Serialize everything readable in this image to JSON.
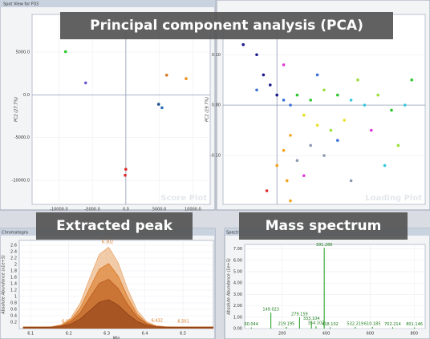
{
  "banners": [
    "Principal component analysis (PCA)",
    "Extracted peak",
    "Mass spectrum"
  ],
  "panel_titles": [
    "Spot View for F03",
    "Chromatogra",
    "Spectr"
  ],
  "chart_data": [
    {
      "type": "scatter",
      "watermark": "Score Plot",
      "ylabel": "PC2 (27.7%)",
      "x": [
        -9000,
        -6000,
        6100,
        9000,
        4900,
        5400,
        0,
        -100
      ],
      "y": [
        5050,
        1400,
        2300,
        1900,
        -1100,
        -1500,
        -8700,
        -9400
      ],
      "colors": [
        "#2ec82e",
        "#6a5acd",
        "#d9731a",
        "#f08c1e",
        "#1f4e8c",
        "#2a6fb0",
        "#e02a2a",
        "#e02a2a"
      ],
      "xlim": [
        -14000,
        12600
      ],
      "ylim": [
        -12800,
        9400
      ],
      "xticks": [
        {
          "value": -10000,
          "label": "-10000.0"
        },
        {
          "value": -5000,
          "label": "-5000.0"
        },
        {
          "value": 0,
          "label": "0.0"
        },
        {
          "value": 5000,
          "label": "5000.0"
        },
        {
          "value": 10000,
          "label": "10000.0"
        }
      ],
      "yticks": [
        {
          "value": 5000,
          "label": "5000.0"
        },
        {
          "value": 0,
          "label": "0.0"
        },
        {
          "value": -5000,
          "label": "-5000.0"
        },
        {
          "value": -10000,
          "label": "-10000.0"
        }
      ],
      "grid": true
    },
    {
      "type": "scatter",
      "watermark": "Loading Plot",
      "ylabel": "PC2 (19.7%)",
      "x": [
        -0.03,
        -0.02,
        -0.01,
        0.0,
        0.01,
        0.02,
        0.03,
        0.05,
        0.07,
        0.09,
        0.11,
        0.13,
        0.15,
        0.17,
        0.19,
        0.04,
        0.06,
        0.08,
        0.1,
        0.02,
        0.01,
        0.0,
        0.015,
        0.03,
        0.05,
        0.07,
        0.09,
        -0.015,
        0.02,
        0.04,
        -0.05,
        0.01,
        0.06,
        0.12,
        0.14,
        0.16,
        0.18,
        0.11,
        -0.03,
        0.2
      ],
      "y": [
        0.1,
        0.06,
        0.04,
        0.02,
        0.01,
        0.0,
        0.02,
        0.01,
        0.03,
        0.02,
        0.01,
        0.0,
        0.02,
        -0.01,
        0.0,
        -0.02,
        -0.04,
        -0.05,
        -0.03,
        -0.06,
        -0.09,
        -0.12,
        -0.15,
        -0.11,
        -0.08,
        -0.1,
        -0.07,
        -0.17,
        -0.19,
        -0.14,
        0.12,
        0.08,
        0.06,
        0.05,
        -0.05,
        -0.12,
        -0.08,
        -0.15,
        0.03,
        0.05
      ],
      "colors": [
        "#1a1a8c",
        "#1a1a8c",
        "#1a1a8c",
        "#1a1a8c",
        "#3b6fd9",
        "#3b6fd9",
        "#2ec82e",
        "#2ec82e",
        "#9be03a",
        "#2ec82e",
        "#35c8e0",
        "#35c8e0",
        "#9be03a",
        "#2ec82e",
        "#35c8e0",
        "#e8e02a",
        "#e8e02a",
        "#9be03a",
        "#e8e02a",
        "#f5a21b",
        "#f5a21b",
        "#f5a21b",
        "#f5a21b",
        "#8a9bb0",
        "#8a9bb0",
        "#8a9bb0",
        "#3b6fd9",
        "#e02a2a",
        "#f5a21b",
        "#e03ad6",
        "#1a1a8c",
        "#e03ad6",
        "#3b6fd9",
        "#9be03a",
        "#e03ad6",
        "#35c8e0",
        "#9be03a",
        "#8a9bb0",
        "#3b6fd9",
        "#2ec82e"
      ],
      "xlim": [
        -0.08,
        0.22
      ],
      "ylim": [
        -0.197,
        0.18
      ],
      "yticks": [
        {
          "value": 0.1,
          "label": "0.10"
        },
        {
          "value": 0,
          "label": "0.00"
        },
        {
          "value": -0.1,
          "label": "-0.10"
        }
      ],
      "grid": true
    },
    {
      "type": "line",
      "xlabel": "Min",
      "ylabel": "Absolute Abundance (x1e+5)",
      "x": [
        6.08,
        6.105,
        6.13,
        6.155,
        6.18,
        6.205,
        6.23,
        6.255,
        6.28,
        6.305,
        6.33,
        6.355,
        6.38,
        6.405,
        6.43,
        6.455,
        6.48,
        6.505,
        6.53,
        6.555,
        6.58
      ],
      "series": [
        {
          "color": "#e8a060",
          "values": [
            0.05,
            0.05,
            0.05,
            0.06,
            0.12,
            0.32,
            0.79,
            1.57,
            2.31,
            2.54,
            2.05,
            1.22,
            0.56,
            0.21,
            0.09,
            0.06,
            0.05,
            0.05,
            0.05,
            0.05,
            0.05
          ]
        },
        {
          "color": "#d9731a",
          "values": [
            0.05,
            0.05,
            0.05,
            0.05,
            0.1,
            0.26,
            0.64,
            1.26,
            1.85,
            2.03,
            1.64,
            0.98,
            0.45,
            0.17,
            0.07,
            0.05,
            0.05,
            0.05,
            0.05,
            0.05,
            0.05
          ]
        },
        {
          "color": "#b5561a",
          "values": [
            0.05,
            0.05,
            0.05,
            0.05,
            0.09,
            0.21,
            0.49,
            0.96,
            1.41,
            1.54,
            1.25,
            0.75,
            0.36,
            0.15,
            0.07,
            0.05,
            0.05,
            0.05,
            0.05,
            0.05,
            0.05
          ]
        },
        {
          "color": "#8a3c12",
          "values": [
            0.04,
            0.04,
            0.04,
            0.04,
            0.06,
            0.14,
            0.3,
            0.56,
            0.82,
            0.9,
            0.73,
            0.45,
            0.22,
            0.1,
            0.05,
            0.04,
            0.04,
            0.04,
            0.04,
            0.04,
            0.04
          ]
        }
      ],
      "annotations": [
        {
          "x": 6.302,
          "y": 2.6
        },
        {
          "x": 6.197,
          "y": 0.12
        },
        {
          "x": 6.432,
          "y": 0.15
        },
        {
          "x": 6.501,
          "y": 0.12
        }
      ],
      "xlim": [
        6.07,
        6.58
      ],
      "ylim": [
        0,
        2.75
      ],
      "xticks": [
        6.1,
        6.2,
        6.3,
        6.4,
        6.5
      ],
      "yticks": [
        0.2,
        0.4,
        0.6,
        0.8,
        1.0,
        1.2,
        1.4,
        1.6,
        1.8,
        2.0,
        2.2,
        2.4,
        2.6
      ],
      "grid": true
    },
    {
      "type": "stem",
      "ylabel": "Absolute Abundance (1e+5)",
      "x": [
        60.044,
        149.023,
        219.195,
        279.159,
        333.104,
        354.107,
        391.286,
        418.102,
        532.219,
        610.185,
        702.214,
        801.146
      ],
      "values": [
        0.1,
        1.4,
        0.15,
        1.0,
        0.6,
        0.2,
        7.1,
        0.12,
        0.15,
        0.15,
        0.12,
        0.1
      ],
      "xlim": [
        30,
        850
      ],
      "ylim": [
        0,
        7.4
      ],
      "xticks": [
        200,
        400,
        600,
        800
      ],
      "yticks": [
        {
          "value": 0,
          "label": "0.00"
        },
        {
          "value": 1,
          "label": "1.00"
        },
        {
          "value": 2,
          "label": "2.00"
        },
        {
          "value": 3,
          "label": "3.00"
        },
        {
          "value": 4,
          "label": "4.00"
        },
        {
          "value": 5,
          "label": "5.00"
        },
        {
          "value": 6,
          "label": "6.00"
        },
        {
          "value": 7,
          "label": "7.00"
        }
      ],
      "color": "#1a9a1a",
      "grid": true
    }
  ]
}
